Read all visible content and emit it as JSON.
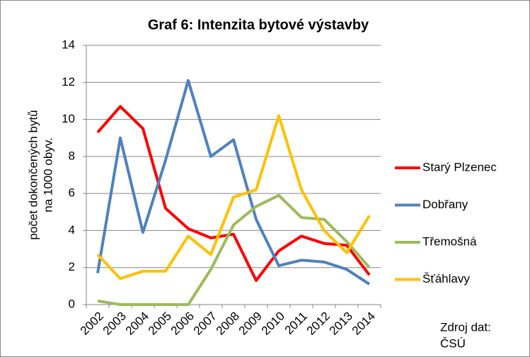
{
  "chart_data": {
    "type": "line",
    "title": "Graf 6: Intenzita bytové výstavby",
    "ylabel": [
      "počet dokončených bytů",
      "na 1000 obyv."
    ],
    "source": [
      "Zdroj dat:",
      "ČSÚ"
    ],
    "categories": [
      "2002",
      "2003",
      "2004",
      "2005",
      "2006",
      "2007",
      "2008",
      "2009",
      "2010",
      "2011",
      "2012",
      "2013",
      "2014"
    ],
    "series": [
      {
        "name": "Starý Plzenec",
        "color": "#ff0000",
        "values": [
          9.3,
          10.7,
          9.5,
          5.2,
          4.1,
          3.6,
          3.8,
          1.3,
          2.9,
          3.7,
          3.3,
          3.2,
          1.6
        ]
      },
      {
        "name": "Dobřany",
        "color": "#4f81bd",
        "values": [
          1.7,
          9.0,
          3.9,
          7.8,
          12.1,
          8.0,
          8.9,
          4.6,
          2.1,
          2.4,
          2.3,
          1.9,
          1.1
        ]
      },
      {
        "name": "Třemošná",
        "color": "#9bbb59",
        "values": [
          0.2,
          0,
          0,
          0,
          0,
          1.9,
          4.3,
          5.3,
          5.9,
          4.7,
          4.6,
          3.4,
          2.0
        ]
      },
      {
        "name": "Šťáhlavy",
        "color": "#ffc000",
        "values": [
          2.7,
          1.4,
          1.8,
          1.8,
          3.7,
          2.7,
          5.8,
          6.2,
          10.2,
          6.2,
          4.0,
          2.8,
          4.8
        ]
      }
    ],
    "ylim": [
      0,
      14
    ],
    "yticks": [
      0,
      2,
      4,
      6,
      8,
      10,
      12,
      14
    ],
    "grid": true,
    "legend": "right"
  }
}
